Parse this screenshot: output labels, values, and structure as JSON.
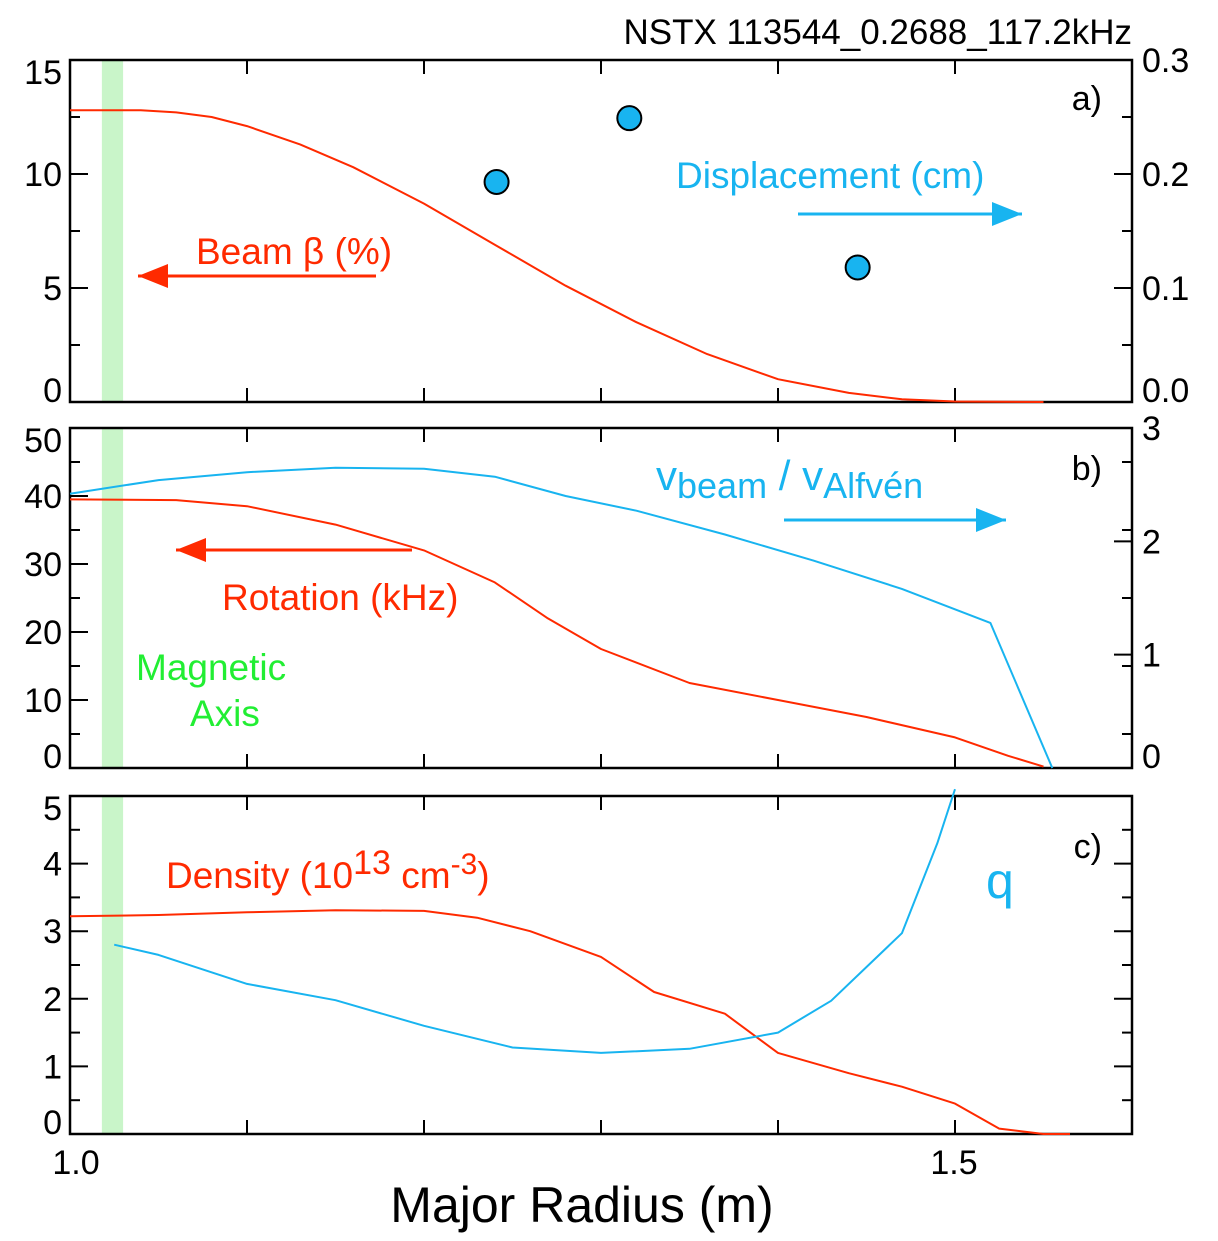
{
  "header": {
    "shot_label": "NSTX 113544_0.2688_117.2kHz"
  },
  "colors": {
    "red": "#ff2a00",
    "blue": "#18b4f0",
    "green": "#22ee33",
    "band": "#c9f5c9"
  },
  "x_axis": {
    "label": "Major Radius (m)",
    "range": [
      1.0,
      1.6
    ],
    "tick_labels": [
      {
        "value": 1.0,
        "text": "1.0"
      },
      {
        "value": 1.5,
        "text": "1.5"
      }
    ],
    "minor_ticks": [
      1.1,
      1.2,
      1.3,
      1.4,
      1.5
    ]
  },
  "magnetic_axis": {
    "label_line1": "Magnetic",
    "label_line2": "Axis",
    "band_x": [
      1.018,
      1.03
    ]
  },
  "chart_data": [
    {
      "type": "line",
      "panel_label": "a)",
      "xlim": [
        1.0,
        1.6
      ],
      "ylim_left": [
        0,
        15
      ],
      "ylim_right": [
        0,
        0.3
      ],
      "left_ticks": [
        0,
        5,
        10,
        15
      ],
      "right_ticks": [
        0.0,
        0.1,
        0.2,
        0.3
      ],
      "right_tick_labels": [
        "0.0",
        "0.1",
        "0.2",
        "0.3"
      ],
      "series": [
        {
          "label_main": "Beam β (%)",
          "axis": "left",
          "kind": "line",
          "color": "red",
          "x": [
            1.0,
            1.04,
            1.06,
            1.08,
            1.1,
            1.13,
            1.16,
            1.2,
            1.24,
            1.28,
            1.32,
            1.36,
            1.4,
            1.44,
            1.47,
            1.5,
            1.55
          ],
          "y": [
            12.8,
            12.8,
            12.7,
            12.5,
            12.1,
            11.3,
            10.3,
            8.7,
            6.9,
            5.1,
            3.5,
            2.1,
            1.0,
            0.4,
            0.12,
            0.02,
            0.0
          ]
        },
        {
          "label_main": "Displacement (cm)",
          "axis": "right",
          "kind": "scatter",
          "color": "blue",
          "x": [
            1.241,
            1.316,
            1.445
          ],
          "y": [
            0.193,
            0.249,
            0.118
          ]
        }
      ],
      "annotation_arrows": [
        {
          "color": "red",
          "direction": "left"
        },
        {
          "color": "blue",
          "direction": "right"
        }
      ]
    },
    {
      "type": "line",
      "panel_label": "b)",
      "xlim": [
        1.0,
        1.6
      ],
      "ylim_left": [
        0,
        50
      ],
      "ylim_right": [
        0,
        3
      ],
      "left_ticks": [
        0,
        10,
        20,
        30,
        40,
        50
      ],
      "right_ticks": [
        0,
        1,
        2,
        3
      ],
      "right_tick_labels": [
        "0",
        "1",
        "2",
        "3"
      ],
      "series": [
        {
          "label_main": "Rotation (kHz)",
          "axis": "left",
          "kind": "line",
          "color": "red",
          "x": [
            1.0,
            1.06,
            1.1,
            1.15,
            1.2,
            1.24,
            1.27,
            1.3,
            1.35,
            1.4,
            1.45,
            1.5,
            1.53,
            1.55
          ],
          "y": [
            39.5,
            39.4,
            38.5,
            35.8,
            32.0,
            27.3,
            22.0,
            17.5,
            12.5,
            10.0,
            7.5,
            4.5,
            1.8,
            0.2
          ]
        },
        {
          "label_main": "v",
          "label_sub": "beam",
          "label_main2": " / v",
          "label_sub2": "Alfvén",
          "axis": "right",
          "kind": "line",
          "color": "blue",
          "x": [
            1.0,
            1.05,
            1.1,
            1.15,
            1.2,
            1.24,
            1.28,
            1.32,
            1.37,
            1.42,
            1.47,
            1.52,
            1.555
          ],
          "y": [
            2.42,
            2.54,
            2.61,
            2.65,
            2.64,
            2.57,
            2.4,
            2.27,
            2.06,
            1.83,
            1.58,
            1.28,
            0.0
          ]
        }
      ],
      "annotation_arrows": [
        {
          "color": "red",
          "direction": "left"
        },
        {
          "color": "blue",
          "direction": "right"
        }
      ]
    },
    {
      "type": "line",
      "panel_label": "c)",
      "xlim": [
        1.0,
        1.6
      ],
      "ylim": [
        0,
        5
      ],
      "left_ticks": [
        0,
        1,
        2,
        3,
        4,
        5
      ],
      "series": [
        {
          "label_main": "Density (10",
          "label_sup": "13",
          "label_main2": " cm",
          "label_sup2": "-3",
          "label_main3": ")",
          "kind": "line",
          "color": "red",
          "x": [
            1.0,
            1.05,
            1.1,
            1.15,
            1.2,
            1.23,
            1.26,
            1.3,
            1.33,
            1.37,
            1.4,
            1.44,
            1.47,
            1.5,
            1.525,
            1.55,
            1.565
          ],
          "y": [
            3.22,
            3.24,
            3.28,
            3.31,
            3.3,
            3.2,
            3.0,
            2.62,
            2.1,
            1.78,
            1.2,
            0.9,
            0.7,
            0.45,
            0.08,
            0.0,
            0.0
          ]
        },
        {
          "label_main": "q",
          "kind": "line",
          "color": "blue",
          "x": [
            1.025,
            1.05,
            1.1,
            1.15,
            1.2,
            1.25,
            1.3,
            1.35,
            1.4,
            1.43,
            1.47,
            1.49,
            1.5
          ],
          "y": [
            2.8,
            2.65,
            2.22,
            1.98,
            1.6,
            1.28,
            1.2,
            1.26,
            1.5,
            1.97,
            2.97,
            4.3,
            5.1
          ]
        }
      ]
    }
  ]
}
